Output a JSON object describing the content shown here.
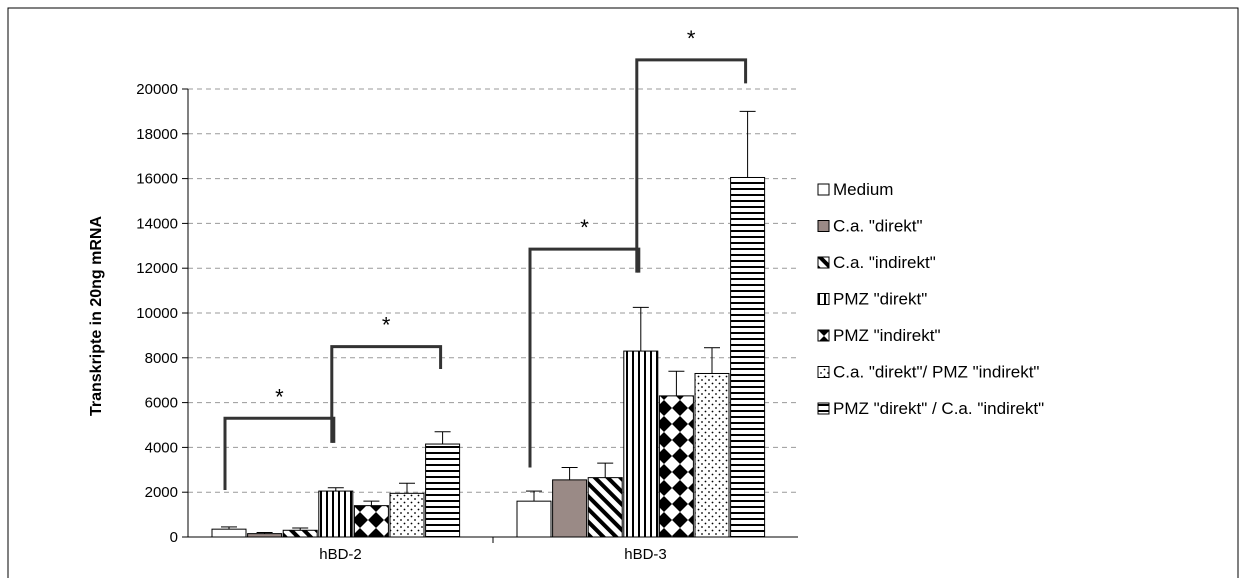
{
  "chart_data": {
    "type": "bar",
    "title": "",
    "xlabel": "",
    "ylabel": "Transkripte in 20ng mRNA",
    "ylim": [
      0,
      20000
    ],
    "yticks": [
      0,
      2000,
      4000,
      6000,
      8000,
      10000,
      12000,
      14000,
      16000,
      18000,
      20000
    ],
    "grid": true,
    "legend_position": "right",
    "categories": [
      "hBD-2",
      "hBD-3"
    ],
    "series": [
      {
        "name": "Medium",
        "pattern": "white",
        "values": [
          350,
          1600
        ],
        "errors": [
          100,
          450
        ]
      },
      {
        "name": "C.a. \"direkt\"",
        "pattern": "gray",
        "values": [
          150,
          2550
        ],
        "errors": [
          50,
          550
        ]
      },
      {
        "name": "C.a. \"indirekt\"",
        "pattern": "diagonal",
        "values": [
          300,
          2650
        ],
        "errors": [
          100,
          650
        ]
      },
      {
        "name": " PMZ \"direkt\"",
        "pattern": "vertical",
        "values": [
          2050,
          8300
        ],
        "errors": [
          150,
          1950
        ]
      },
      {
        "name": "PMZ \"indirekt\"",
        "pattern": "diamond",
        "values": [
          1400,
          6300
        ],
        "errors": [
          200,
          1100
        ]
      },
      {
        "name": "C.a. \"direkt\"/ PMZ \"indirekt\"",
        "pattern": "dots",
        "values": [
          1950,
          7300
        ],
        "errors": [
          450,
          1150
        ]
      },
      {
        "name": "PMZ \"direkt\" / C.a. \"indirekt\"",
        "pattern": "horizontal",
        "values": [
          4150,
          16050
        ],
        "errors": [
          550,
          2950
        ]
      }
    ],
    "significance": [
      {
        "category": "hBD-2",
        "label": "*",
        "from_series": 0,
        "to_series": 3,
        "y": 5300,
        "left_end": 2100,
        "right_end": 4200
      },
      {
        "category": "hBD-2",
        "label": "*",
        "from_series": 3,
        "to_series": 6,
        "y": 8500,
        "left_end": 4200,
        "right_end": 7500
      },
      {
        "category": "hBD-3",
        "label": "*",
        "from_series": 0,
        "to_series": 3,
        "y": 12850,
        "left_end": 3100,
        "right_end": 11800
      },
      {
        "category": "hBD-3",
        "label": "*",
        "from_series": 3,
        "to_series": 6,
        "y": 21300,
        "left_end": 11800,
        "right_end": 20250
      }
    ],
    "colors": {
      "bar_stroke": "#000000",
      "gray_fill": "#9a8a86",
      "bracket": "#333333",
      "grid": "#9a9a9a"
    }
  }
}
